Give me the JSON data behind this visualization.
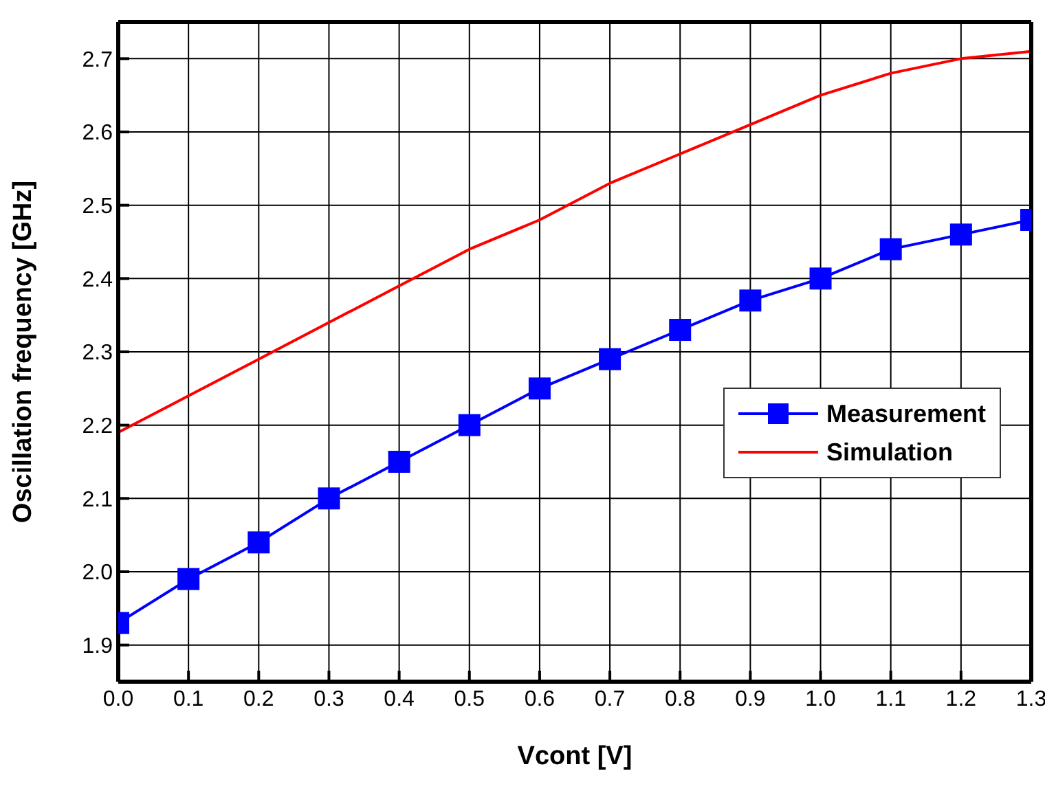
{
  "chart_data": {
    "type": "line",
    "xlabel": "Vcont [V]",
    "ylabel": "Oscillation frequency [GHz]",
    "x": [
      0.0,
      0.1,
      0.2,
      0.3,
      0.4,
      0.5,
      0.6,
      0.7,
      0.8,
      0.9,
      1.0,
      1.1,
      1.2,
      1.3
    ],
    "xlim": [
      0,
      1.3
    ],
    "xticks": [
      {
        "value": 0,
        "label": "0.0"
      },
      0.1,
      0.2,
      0.3,
      0.4,
      0.5,
      0.6,
      0.7,
      0.8,
      0.9,
      {
        "value": 1,
        "label": "1.0"
      },
      1.1,
      1.2,
      1.3
    ],
    "ylim": [
      1.85,
      2.75
    ],
    "yticks": [
      1.9,
      {
        "value": 2,
        "label": "2.0"
      },
      2.1,
      2.2,
      2.3,
      2.4,
      2.5,
      2.6,
      2.7
    ],
    "grid": true,
    "legend": "right",
    "series": [
      {
        "name": "Measurement",
        "color": "#0000ff",
        "marker": "square",
        "values": [
          1.93,
          1.99,
          2.04,
          2.1,
          2.15,
          2.2,
          2.25,
          2.29,
          2.33,
          2.37,
          2.4,
          2.44,
          2.46,
          2.48
        ]
      },
      {
        "name": "Simulation",
        "color": "#ff0000",
        "marker": "none",
        "values": [
          2.19,
          2.24,
          2.29,
          2.34,
          2.39,
          2.44,
          2.48,
          2.53,
          2.57,
          2.61,
          2.65,
          2.68,
          2.7,
          2.71
        ]
      }
    ]
  }
}
